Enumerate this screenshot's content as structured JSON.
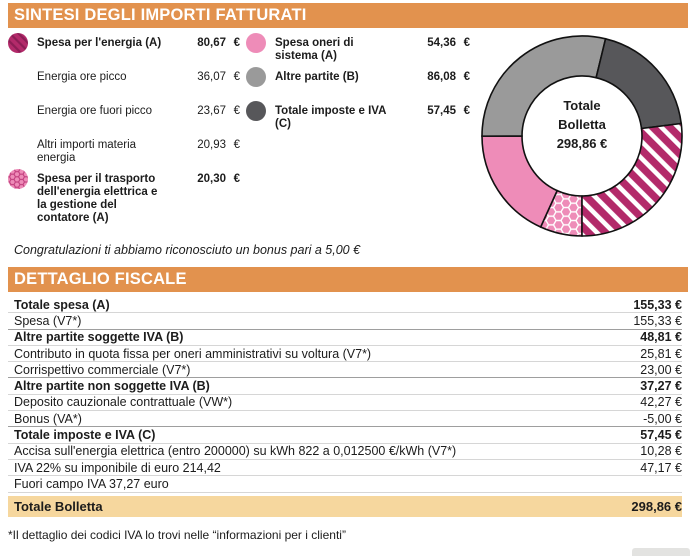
{
  "colors": {
    "header_bg": "#e2924e",
    "header_text": "#ffffff",
    "magenta": "#b32a6a",
    "magenta_stripe": "#8d1d55",
    "magenta_light": "#c2407f",
    "pink": "#ee8cb8",
    "gray": "#9a9a9a",
    "dark_gray": "#57575a",
    "total_row_bg": "#f6d79e",
    "text": "#1c1c1c",
    "separator": "#d6d6d6",
    "separator_strong": "#9e9e9e",
    "outline": "#111111"
  },
  "summary": {
    "title": "SINTESI DEGLI IMPORTI FATTURATI",
    "currency": "€",
    "left_items": [
      {
        "label": "Spesa per l'energia (A)",
        "value": "80,67",
        "bold": true,
        "marker": "hatch"
      },
      {
        "label": "Energia ore picco",
        "value": "36,07",
        "bold": false,
        "marker": null
      },
      {
        "label": "Energia ore fuori picco",
        "value": "23,67",
        "bold": false,
        "marker": null
      },
      {
        "label": "Altri importi materia energia",
        "value": "20,93",
        "bold": false,
        "marker": null
      },
      {
        "label": "Spesa per il trasporto dell'energia elettrica e la gestione del contatore (A)",
        "value": "20,30",
        "bold": true,
        "marker": "honeycomb"
      }
    ],
    "right_items": [
      {
        "label": "Spesa oneri di sistema (A)",
        "value": "54,36",
        "bold": true,
        "marker": "pink"
      },
      {
        "label": "Altre partite (B)",
        "value": "86,08",
        "bold": true,
        "marker": "gray"
      },
      {
        "label": "Totale imposte e IVA (C)",
        "value": "57,45",
        "bold": true,
        "marker": "darkgray"
      }
    ]
  },
  "bonus_note": "Congratulazioni ti abbiamo riconosciuto un bonus pari a 5,00 €",
  "fiscal": {
    "title": "DETTAGLIO FISCALE",
    "rows": [
      {
        "label": "Totale spesa (A)",
        "value": "155,33 €",
        "bold": true
      },
      {
        "label": "Spesa (V7*)",
        "value": "155,33 €",
        "bold": false
      },
      {
        "label": "Altre partite soggette IVA (B)",
        "value": "48,81 €",
        "bold": true
      },
      {
        "label": "Contributo in quota fissa per oneri amministrativi su voltura (V7*)",
        "value": "25,81 €",
        "bold": false
      },
      {
        "label": "Corrispettivo commerciale (V7*)",
        "value": "23,00 €",
        "bold": false
      },
      {
        "label": "Altre partite non soggette IVA (B)",
        "value": "37,27 €",
        "bold": true
      },
      {
        "label": "Deposito cauzionale contrattuale (VW*)",
        "value": "42,27 €",
        "bold": false
      },
      {
        "label": "Bonus (VA*)",
        "value": "-5,00 €",
        "bold": false
      },
      {
        "label": "Totale imposte e IVA (C)",
        "value": "57,45 €",
        "bold": true
      },
      {
        "label": "Accisa sull'energia elettrica (entro 200000) su kWh 822 a 0,012500 €/kWh (V7*)",
        "value": "10,28 €",
        "bold": false
      },
      {
        "label": "IVA 22% su imponibile di euro 214,42",
        "value": "47,17 €",
        "bold": false
      },
      {
        "label": "Fuori campo IVA 37,27 euro",
        "value": "",
        "bold": false
      }
    ],
    "total_row": {
      "label": "Totale Bolletta",
      "value": "298,86 €"
    }
  },
  "footnote": "*Il dettaglio dei codici IVA lo trovi nelle “informazioni per i clienti”",
  "chart_data": {
    "type": "pie",
    "subtype": "donut",
    "title": "Totale Bolletta",
    "center_label": [
      "Totale",
      "Bolletta",
      "298,86 €"
    ],
    "total": 298.86,
    "start_angle_deg": 180,
    "direction": "clockwise",
    "segments": [
      {
        "label": "Spesa per il trasporto dell'energia elettrica e la gestione del contatore (A)",
        "value": 20.3,
        "style": "honeycomb"
      },
      {
        "label": "Spesa oneri di sistema (A)",
        "value": 54.36,
        "style": "pink"
      },
      {
        "label": "Altre partite (B)",
        "value": 86.08,
        "style": "gray"
      },
      {
        "label": "Totale imposte e IVA (C)",
        "value": 57.45,
        "style": "darkgray"
      },
      {
        "label": "Spesa per l'energia (A)",
        "value": 80.67,
        "style": "hatch"
      }
    ]
  }
}
